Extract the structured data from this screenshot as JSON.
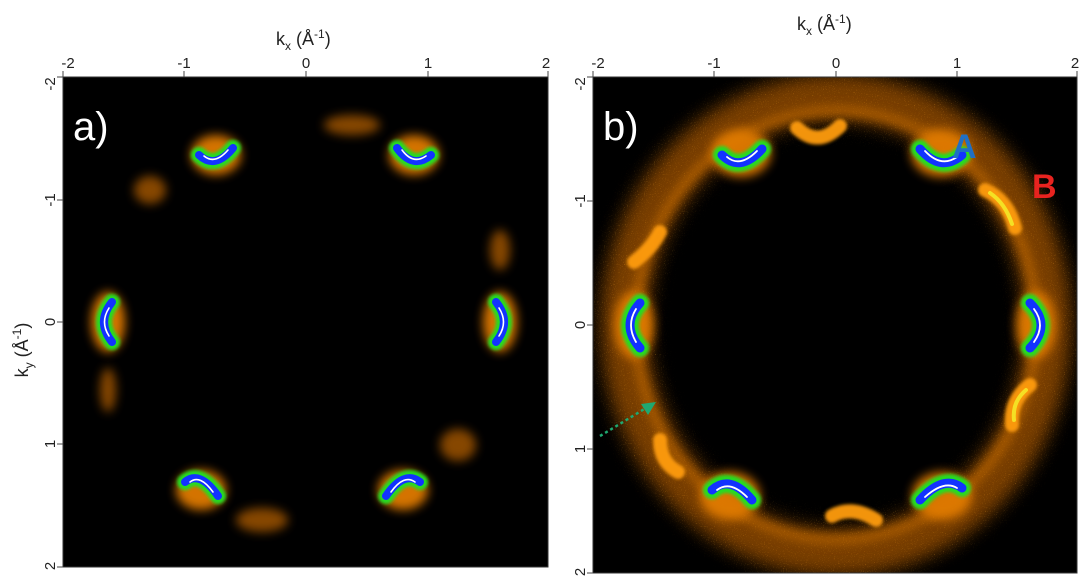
{
  "figure": {
    "panels": [
      {
        "id": "a",
        "letter": "a)",
        "xlabel_main": "k",
        "xlabel_sub": "x",
        "xlabel_unit": " (Å",
        "xlabel_exp": "-1",
        "xlabel_close": ")"
      },
      {
        "id": "b",
        "letter": "b)",
        "xlabel_main": "k",
        "xlabel_sub": "x",
        "xlabel_unit": " (Å",
        "xlabel_exp": "-1",
        "xlabel_close": ")"
      }
    ],
    "ylabel": {
      "main": "k",
      "sub": "y",
      "unit": " (Å",
      "exp": "-1",
      "close": ")"
    },
    "x_ticks": [
      "-2",
      "-1",
      "0",
      "1",
      "2"
    ],
    "y_ticks": [
      "-2",
      "-1",
      "0",
      "1",
      "2"
    ],
    "labels": {
      "A": {
        "text": "A",
        "color": "#1f6fc4"
      },
      "B": {
        "text": "B",
        "color": "#e8231f"
      }
    },
    "colors": {
      "background": "#000000",
      "outer_glow": "#c96a00",
      "mid": "#ffb020",
      "yellow": "#f2f22a",
      "green": "#22dd22",
      "cyan": "#28e0d6",
      "blue": "#1232ff",
      "white_core": "#ffffff",
      "arrow": "#1fa870"
    }
  }
}
